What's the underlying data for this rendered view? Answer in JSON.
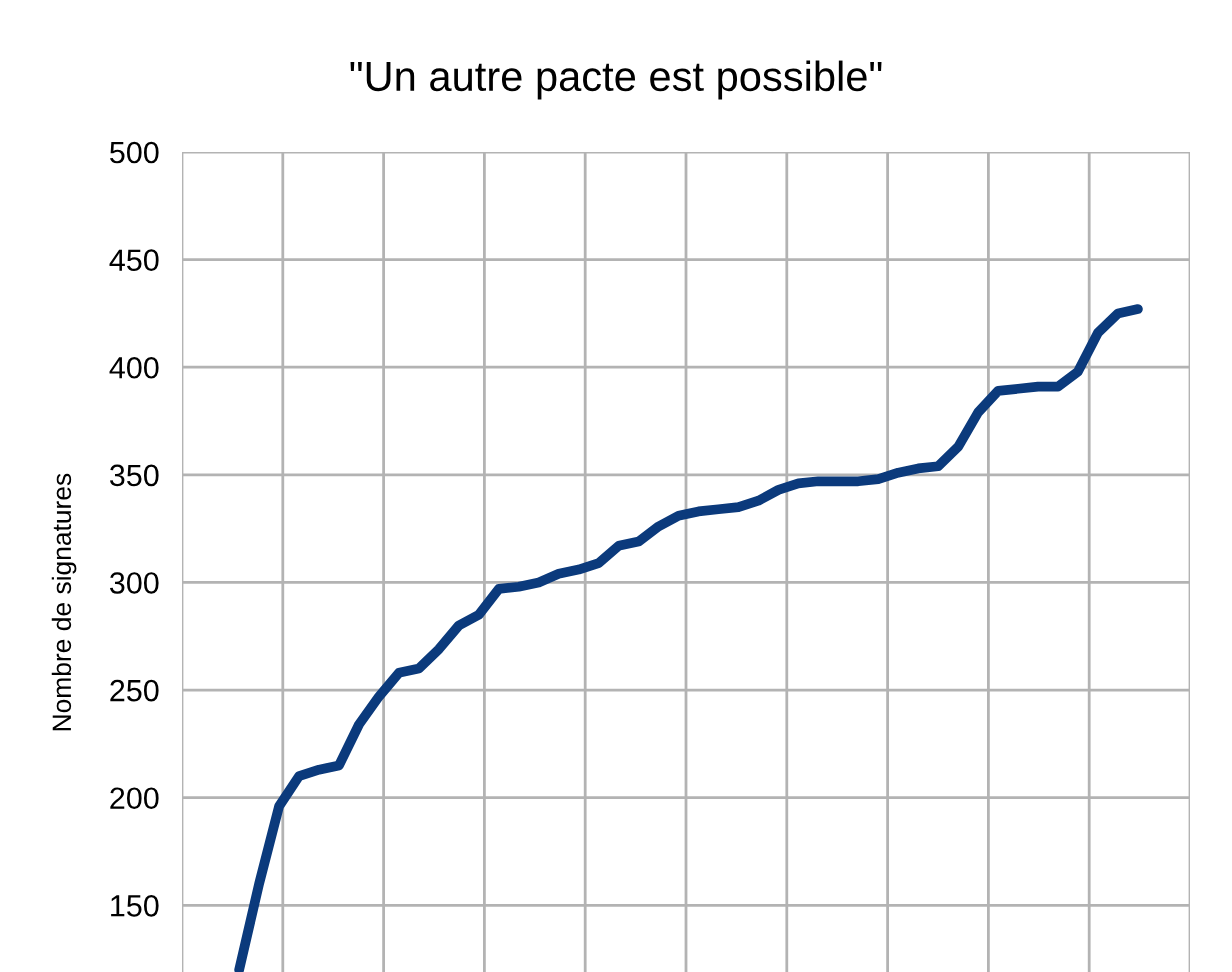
{
  "chart_data": {
    "type": "line",
    "title": "\"Un autre pacte est possible\"",
    "ylabel": "Nombre de signatures",
    "categories": [
      null,
      null,
      null,
      null,
      null,
      null,
      null,
      null,
      null,
      null,
      null,
      null,
      null,
      null,
      null,
      null,
      null,
      null,
      null,
      null,
      null,
      null,
      null,
      null,
      null,
      null,
      null,
      null,
      null,
      null,
      null,
      null,
      null,
      null,
      null,
      null,
      null,
      null,
      null,
      null,
      null,
      null,
      null,
      null,
      null,
      null
    ],
    "series": [
      {
        "color": "#0b3a7c",
        "values": [
          120,
          160,
          196,
          210,
          213,
          215,
          234,
          247,
          258,
          260,
          269,
          280,
          285,
          297,
          298,
          300,
          304,
          306,
          309,
          317,
          319,
          326,
          331,
          333,
          334,
          335,
          338,
          343,
          346,
          347,
          347,
          347,
          348,
          351,
          353,
          354,
          363,
          379,
          389,
          390,
          391,
          391,
          398,
          416,
          425,
          427
        ]
      }
    ],
    "ylim": [
      119,
      500
    ],
    "yticks": [
      150,
      200,
      250,
      300,
      350,
      400,
      450,
      500
    ],
    "grid": true,
    "marker": "none",
    "line_style": "solid"
  }
}
